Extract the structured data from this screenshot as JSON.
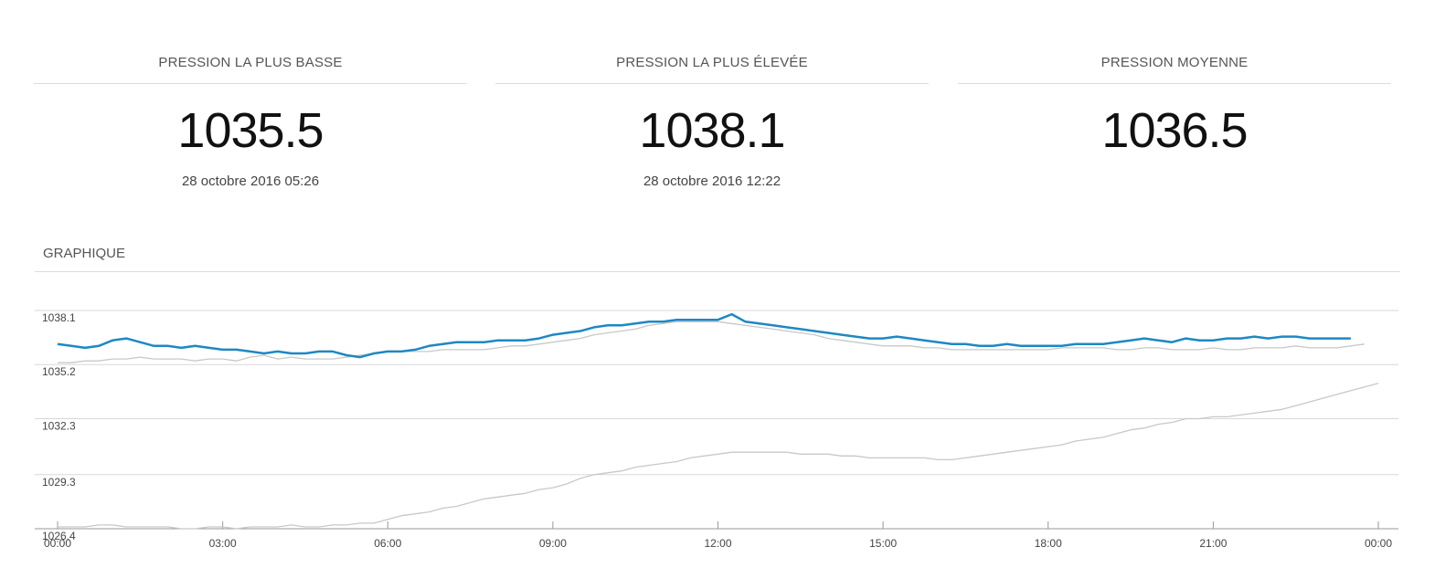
{
  "stats": [
    {
      "header": "PRESSION LA PLUS BASSE",
      "value": "1035.5",
      "date": "28 octobre 2016 05:26"
    },
    {
      "header": "PRESSION LA PLUS ÉLEVÉE",
      "value": "1038.1",
      "date": "28 octobre 2016 12:22"
    },
    {
      "header": "PRESSION MOYENNE",
      "value": "1036.5",
      "date": ""
    }
  ],
  "section_title": "GRAPHIQUE",
  "colors": {
    "primary": "#1e88c3",
    "secondary": "#c8c8c8",
    "grid": "#d8d8d8",
    "axis": "#999999"
  },
  "chart_data": {
    "type": "line",
    "title": "",
    "xlabel": "",
    "ylabel": "",
    "x_unit": "hours (00:00 to 24:00)",
    "xlim": [
      0,
      24
    ],
    "ylim": [
      1026.4,
      1038.1
    ],
    "y_ticks": [
      "1038.1",
      "1035.2",
      "1032.3",
      "1029.3",
      "1026.4"
    ],
    "x_ticks": [
      "00:00",
      "03:00",
      "06:00",
      "09:00",
      "12:00",
      "15:00",
      "18:00",
      "21:00",
      "00:00"
    ],
    "grid": true,
    "series": [
      {
        "color": "#1e88c3",
        "x": [
          0,
          0.25,
          0.5,
          0.75,
          1.0,
          1.25,
          1.5,
          1.75,
          2.0,
          2.25,
          2.5,
          2.75,
          3.0,
          3.25,
          3.5,
          3.75,
          4.0,
          4.25,
          4.5,
          4.75,
          5.0,
          5.25,
          5.5,
          5.75,
          6.0,
          6.25,
          6.5,
          6.75,
          7.0,
          7.25,
          7.5,
          7.75,
          8.0,
          8.25,
          8.5,
          8.75,
          9.0,
          9.25,
          9.5,
          9.75,
          10.0,
          10.25,
          10.5,
          10.75,
          11.0,
          11.25,
          11.5,
          11.75,
          12.0,
          12.25,
          12.5,
          12.75,
          13.0,
          13.25,
          13.5,
          13.75,
          14.0,
          14.25,
          14.5,
          14.75,
          15.0,
          15.25,
          15.5,
          15.75,
          16.0,
          16.25,
          16.5,
          16.75,
          17.0,
          17.25,
          17.5,
          17.75,
          18.0,
          18.25,
          18.5,
          18.75,
          19.0,
          19.25,
          19.5,
          19.75,
          20.0,
          20.25,
          20.5,
          20.75,
          21.0,
          21.25,
          21.5,
          21.75,
          22.0,
          22.25,
          22.5,
          22.75,
          23.0,
          23.25,
          23.5
        ],
        "y": [
          1036.3,
          1036.2,
          1036.1,
          1036.2,
          1036.5,
          1036.6,
          1036.4,
          1036.2,
          1036.2,
          1036.1,
          1036.2,
          1036.1,
          1036.0,
          1036.0,
          1035.9,
          1035.8,
          1035.9,
          1035.8,
          1035.8,
          1035.9,
          1035.9,
          1035.7,
          1035.6,
          1035.8,
          1035.9,
          1035.9,
          1036.0,
          1036.2,
          1036.3,
          1036.4,
          1036.4,
          1036.4,
          1036.5,
          1036.5,
          1036.5,
          1036.6,
          1036.8,
          1036.9,
          1037.0,
          1037.2,
          1037.3,
          1037.3,
          1037.4,
          1037.5,
          1037.5,
          1037.6,
          1037.6,
          1037.6,
          1037.6,
          1037.9,
          1037.5,
          1037.4,
          1037.3,
          1037.2,
          1037.1,
          1037.0,
          1036.9,
          1036.8,
          1036.7,
          1036.6,
          1036.6,
          1036.7,
          1036.6,
          1036.5,
          1036.4,
          1036.3,
          1036.3,
          1036.2,
          1036.2,
          1036.3,
          1036.2,
          1036.2,
          1036.2,
          1036.2,
          1036.3,
          1036.3,
          1036.3,
          1036.4,
          1036.5,
          1036.6,
          1036.5,
          1036.4,
          1036.6,
          1036.5,
          1036.5,
          1036.6,
          1036.6,
          1036.7,
          1036.6,
          1036.7,
          1036.7,
          1036.6,
          1036.6,
          1036.6,
          1036.6
        ]
      },
      {
        "color": "#c8c8c8",
        "x": [
          0,
          0.25,
          0.5,
          0.75,
          1.0,
          1.25,
          1.5,
          1.75,
          2.0,
          2.25,
          2.5,
          2.75,
          3.0,
          3.25,
          3.5,
          3.75,
          4.0,
          4.25,
          4.5,
          4.75,
          5.0,
          5.25,
          5.5,
          5.75,
          6.0,
          6.25,
          6.5,
          6.75,
          7.0,
          7.25,
          7.5,
          7.75,
          8.0,
          8.25,
          8.5,
          8.75,
          9.0,
          9.25,
          9.5,
          9.75,
          10.0,
          10.25,
          10.5,
          10.75,
          11.0,
          11.25,
          11.5,
          11.75,
          12.0,
          12.25,
          12.5,
          12.75,
          13.0,
          13.25,
          13.5,
          13.75,
          14.0,
          14.25,
          14.5,
          14.75,
          15.0,
          15.25,
          15.5,
          15.75,
          16.0,
          16.25,
          16.5,
          16.75,
          17.0,
          17.25,
          17.5,
          17.75,
          18.0,
          18.25,
          18.5,
          18.75,
          19.0,
          19.25,
          19.5,
          19.75,
          20.0,
          20.25,
          20.5,
          20.75,
          21.0,
          21.25,
          21.5,
          21.75,
          22.0,
          22.25,
          22.5,
          22.75,
          23.0,
          23.25,
          23.5,
          23.75
        ],
        "y": [
          1035.3,
          1035.3,
          1035.4,
          1035.4,
          1035.5,
          1035.5,
          1035.6,
          1035.5,
          1035.5,
          1035.5,
          1035.4,
          1035.5,
          1035.5,
          1035.4,
          1035.6,
          1035.7,
          1035.5,
          1035.6,
          1035.5,
          1035.5,
          1035.5,
          1035.6,
          1035.7,
          1035.8,
          1035.9,
          1035.9,
          1035.9,
          1035.9,
          1036.0,
          1036.0,
          1036.0,
          1036.0,
          1036.1,
          1036.2,
          1036.2,
          1036.3,
          1036.4,
          1036.5,
          1036.6,
          1036.8,
          1036.9,
          1037.0,
          1037.1,
          1037.3,
          1037.4,
          1037.5,
          1037.5,
          1037.5,
          1037.5,
          1037.4,
          1037.3,
          1037.2,
          1037.1,
          1037.0,
          1036.9,
          1036.8,
          1036.6,
          1036.5,
          1036.4,
          1036.3,
          1036.2,
          1036.2,
          1036.2,
          1036.1,
          1036.1,
          1036.0,
          1036.0,
          1036.0,
          1036.0,
          1036.0,
          1036.0,
          1036.0,
          1036.0,
          1036.1,
          1036.1,
          1036.1,
          1036.1,
          1036.0,
          1036.0,
          1036.1,
          1036.1,
          1036.0,
          1036.0,
          1036.0,
          1036.1,
          1036.0,
          1036.0,
          1036.1,
          1036.1,
          1036.1,
          1036.2,
          1036.1,
          1036.1,
          1036.1,
          1036.2,
          1036.3
        ]
      },
      {
        "color": "#c8c8c8",
        "x": [
          0,
          0.25,
          0.5,
          0.75,
          1.0,
          1.25,
          1.5,
          1.75,
          2.0,
          2.25,
          2.5,
          2.75,
          3.0,
          3.25,
          3.5,
          3.75,
          4.0,
          4.25,
          4.5,
          4.75,
          5.0,
          5.25,
          5.5,
          5.75,
          6.0,
          6.25,
          6.5,
          6.75,
          7.0,
          7.25,
          7.5,
          7.75,
          8.0,
          8.25,
          8.5,
          8.75,
          9.0,
          9.25,
          9.5,
          9.75,
          10.0,
          10.25,
          10.5,
          10.75,
          11.0,
          11.25,
          11.5,
          11.75,
          12.0,
          12.25,
          12.5,
          12.75,
          13.0,
          13.25,
          13.5,
          13.75,
          14.0,
          14.25,
          14.5,
          14.75,
          15.0,
          15.25,
          15.5,
          15.75,
          16.0,
          16.25,
          16.5,
          16.75,
          17.0,
          17.25,
          17.5,
          17.75,
          18.0,
          18.25,
          18.5,
          18.75,
          19.0,
          19.25,
          19.5,
          19.75,
          20.0,
          20.25,
          20.5,
          20.75,
          21.0,
          21.25,
          21.5,
          21.75,
          22.0,
          22.25,
          22.5,
          22.75,
          23.0,
          23.25,
          23.5,
          23.75,
          24.0
        ],
        "y": [
          1026.5,
          1026.5,
          1026.5,
          1026.6,
          1026.6,
          1026.5,
          1026.5,
          1026.5,
          1026.5,
          1026.4,
          1026.4,
          1026.5,
          1026.5,
          1026.4,
          1026.5,
          1026.5,
          1026.5,
          1026.6,
          1026.5,
          1026.5,
          1026.6,
          1026.6,
          1026.7,
          1026.7,
          1026.9,
          1027.1,
          1027.2,
          1027.3,
          1027.5,
          1027.6,
          1027.8,
          1028.0,
          1028.1,
          1028.2,
          1028.3,
          1028.5,
          1028.6,
          1028.8,
          1029.1,
          1029.3,
          1029.4,
          1029.5,
          1029.7,
          1029.8,
          1029.9,
          1030.0,
          1030.2,
          1030.3,
          1030.4,
          1030.5,
          1030.5,
          1030.5,
          1030.5,
          1030.5,
          1030.4,
          1030.4,
          1030.4,
          1030.3,
          1030.3,
          1030.2,
          1030.2,
          1030.2,
          1030.2,
          1030.2,
          1030.1,
          1030.1,
          1030.2,
          1030.3,
          1030.4,
          1030.5,
          1030.6,
          1030.7,
          1030.8,
          1030.9,
          1031.1,
          1031.2,
          1031.3,
          1031.5,
          1031.7,
          1031.8,
          1032.0,
          1032.1,
          1032.3,
          1032.3,
          1032.4,
          1032.4,
          1032.5,
          1032.6,
          1032.7,
          1032.8,
          1033.0,
          1033.2,
          1033.4,
          1033.6,
          1033.8,
          1034.0,
          1034.2
        ]
      }
    ]
  }
}
